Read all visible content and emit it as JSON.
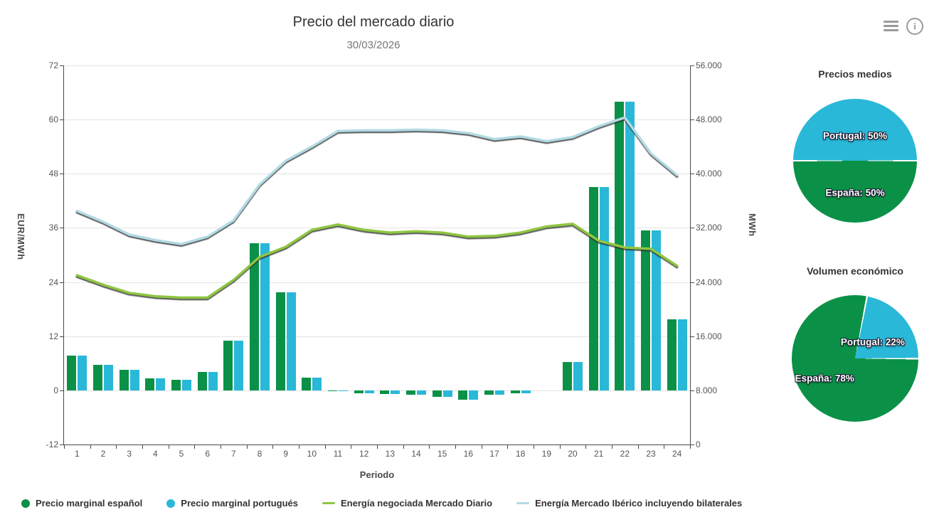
{
  "header": {
    "title": "Precio del mercado diario",
    "subtitle": "30/03/2026"
  },
  "toolbar": {
    "menu_icon": "hamburger-menu-icon",
    "info_icon": "info-circle-icon"
  },
  "chart_data": [
    {
      "type": "combo-bar-line",
      "title": "Precio del mercado diario",
      "subtitle": "30/03/2026",
      "xlabel": "Periodo",
      "x": [
        "1",
        "2",
        "3",
        "4",
        "5",
        "6",
        "7",
        "8",
        "9",
        "10",
        "11",
        "12",
        "13",
        "14",
        "15",
        "16",
        "17",
        "18",
        "19",
        "20",
        "21",
        "22",
        "23",
        "24"
      ],
      "y_left": {
        "label": "EUR/MWh",
        "min": -12,
        "max": 72,
        "ticks": [
          "72",
          "60",
          "48",
          "36",
          "24",
          "12",
          "0",
          "-12"
        ]
      },
      "y_right": {
        "label": "MWh",
        "min": 0,
        "max": 56000,
        "ticks": [
          "56.000",
          "48.000",
          "40.000",
          "32.000",
          "24.000",
          "16.000",
          "8.000",
          "0"
        ]
      },
      "grid": true,
      "legend_position": "bottom",
      "series": [
        {
          "name": "Precio marginal español",
          "type": "bar",
          "axis": "left",
          "color": "#0a9147",
          "values": [
            7.7,
            5.6,
            4.6,
            2.7,
            2.3,
            4.0,
            11.0,
            32.6,
            21.8,
            2.8,
            -0.2,
            -0.7,
            -0.8,
            -0.9,
            -1.5,
            -2.0,
            -1.0,
            -0.7,
            0.0,
            6.3,
            45.0,
            64.0,
            35.5,
            15.7
          ]
        },
        {
          "name": "Precio marginal portugués",
          "type": "bar",
          "axis": "left",
          "color": "#29b8d8",
          "values": [
            7.7,
            5.6,
            4.6,
            2.7,
            2.3,
            4.0,
            11.0,
            32.6,
            21.8,
            2.8,
            -0.2,
            -0.7,
            -0.8,
            -0.9,
            -1.5,
            -2.0,
            -1.0,
            -0.7,
            0.0,
            6.3,
            45.0,
            64.0,
            35.5,
            15.7
          ]
        },
        {
          "name": "Energía negociada Mercado Diario",
          "type": "line",
          "axis": "right",
          "color": "#8fc642",
          "values": [
            25000,
            23600,
            22400,
            21900,
            21700,
            21700,
            24300,
            27700,
            29200,
            31700,
            32500,
            31700,
            31300,
            31500,
            31300,
            30700,
            30800,
            31300,
            32200,
            32600,
            30100,
            29100,
            28900,
            26400
          ]
        },
        {
          "name": "Energía Mercado Ibérico incluyendo bilaterales",
          "type": "line",
          "axis": "right",
          "color": "#b2dae3",
          "values": [
            34500,
            32900,
            31000,
            30200,
            29600,
            30700,
            33100,
            38400,
            41900,
            44000,
            46300,
            46400,
            46400,
            46500,
            46400,
            46000,
            45100,
            45500,
            44800,
            45400,
            47000,
            48300,
            43000,
            39800
          ]
        }
      ]
    },
    {
      "type": "pie",
      "title": "Precios medios",
      "start_angle": 270,
      "slices": [
        {
          "label": "Portugal: 50%",
          "value": 50,
          "color": "#29b8d8"
        },
        {
          "label": "España: 50%",
          "value": 50,
          "color": "#0a9147"
        }
      ]
    },
    {
      "type": "pie",
      "title": "Volumen económico",
      "start_angle": 11,
      "slices": [
        {
          "label": "Portugal: 22%",
          "value": 22,
          "color": "#29b8d8"
        },
        {
          "label": "España: 78%",
          "value": 78,
          "color": "#0a9147"
        }
      ]
    }
  ]
}
